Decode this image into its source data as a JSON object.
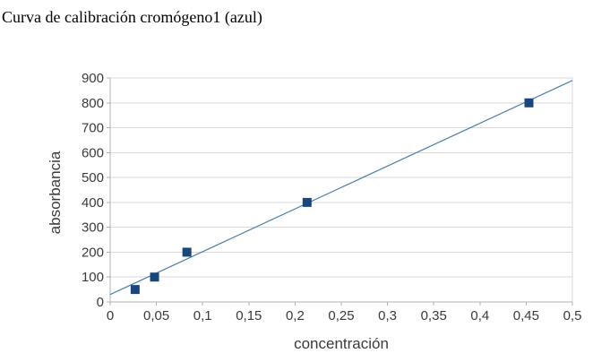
{
  "title": "Curva de calibración cromógeno1 (azul)",
  "chart_data": {
    "type": "scatter",
    "title": "Curva de calibración cromógeno1 (azul)",
    "xlabel": "concentración",
    "ylabel": "absorbancia",
    "xlim": [
      0,
      0.5
    ],
    "ylim": [
      0,
      900
    ],
    "grid": "horizontal-only",
    "legend": "none",
    "marker": "square",
    "x_ticks": [
      {
        "value": 0,
        "label": "0"
      },
      {
        "value": 0.05,
        "label": "0,05"
      },
      {
        "value": 0.1,
        "label": "0,1"
      },
      {
        "value": 0.15,
        "label": "0,15"
      },
      {
        "value": 0.2,
        "label": "0,2"
      },
      {
        "value": 0.25,
        "label": "0,25"
      },
      {
        "value": 0.3,
        "label": "0,3"
      },
      {
        "value": 0.35,
        "label": "0,35"
      },
      {
        "value": 0.4,
        "label": "0,4"
      },
      {
        "value": 0.45,
        "label": "0,45"
      },
      {
        "value": 0.5,
        "label": "0,5"
      }
    ],
    "y_ticks": [
      {
        "value": 0,
        "label": "0"
      },
      {
        "value": 100,
        "label": "100"
      },
      {
        "value": 200,
        "label": "200"
      },
      {
        "value": 300,
        "label": "300"
      },
      {
        "value": 400,
        "label": "400"
      },
      {
        "value": 500,
        "label": "500"
      },
      {
        "value": 600,
        "label": "600"
      },
      {
        "value": 700,
        "label": "700"
      },
      {
        "value": 800,
        "label": "800"
      },
      {
        "value": 900,
        "label": "900"
      }
    ],
    "points": [
      {
        "x": 0.027,
        "y": 50
      },
      {
        "x": 0.048,
        "y": 100
      },
      {
        "x": 0.083,
        "y": 200
      },
      {
        "x": 0.213,
        "y": 400
      },
      {
        "x": 0.453,
        "y": 800
      }
    ],
    "trendline": {
      "x_start": 0,
      "y_start": 30,
      "x_end": 0.5,
      "y_end": 890
    },
    "colors": {
      "marker": "#17477E",
      "trendline": "#4E7FAC",
      "grid": "#D9D9D9",
      "axis": "#B0B0B0",
      "text": "#3A3A3A",
      "title_text": "#000000",
      "background": "#FFFFFF"
    }
  }
}
